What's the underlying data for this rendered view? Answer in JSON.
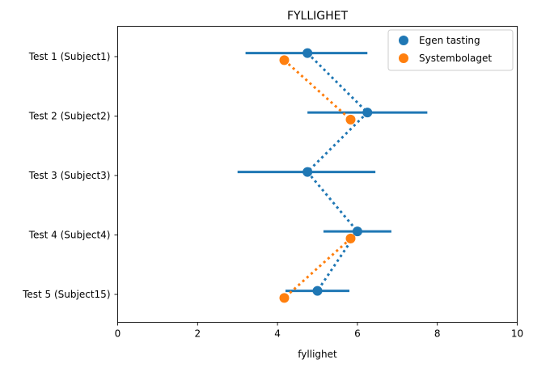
{
  "chart_data": {
    "type": "scatter",
    "title": "FYLLIGHET",
    "xlabel": "fyllighet",
    "ylabel": "",
    "xlim": [
      0,
      10
    ],
    "xticks": [
      0,
      2,
      4,
      6,
      8,
      10
    ],
    "categories": [
      "Test 1 (Subject1)",
      "Test 2 (Subject2)",
      "Test 3 (Subject3)",
      "Test 4 (Subject4)",
      "Test 5 (Subject15)"
    ],
    "grid": false,
    "legend_position": "top-right",
    "series": [
      {
        "name": "Egen tasting",
        "color": "#1f77b4",
        "values": [
          4.75,
          6.25,
          4.75,
          6.0,
          5.0
        ],
        "error_low": [
          3.2,
          4.75,
          3.0,
          5.15,
          4.2
        ],
        "error_high": [
          6.25,
          7.75,
          6.45,
          6.85,
          5.8
        ]
      },
      {
        "name": "Systembolaget",
        "color": "#ff7f0e",
        "values": [
          4.17,
          5.83,
          null,
          5.83,
          4.17
        ]
      }
    ]
  }
}
